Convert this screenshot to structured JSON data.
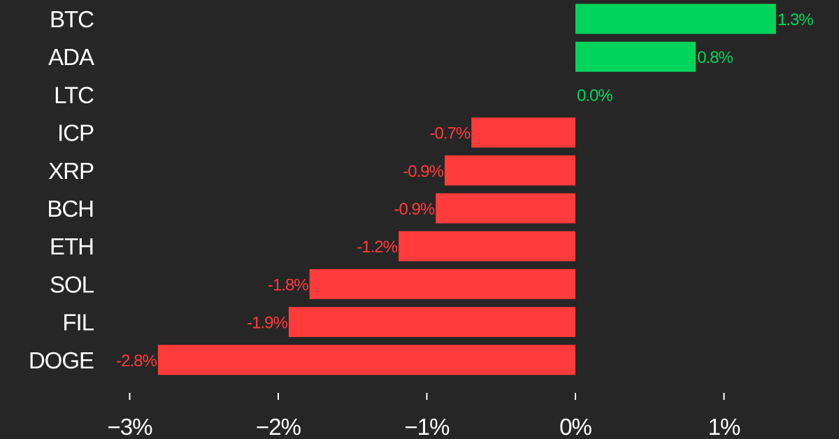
{
  "chart_data": {
    "type": "bar",
    "orientation": "horizontal",
    "categories": [
      "BTC",
      "ADA",
      "LTC",
      "ICP",
      "XRP",
      "BCH",
      "ETH",
      "SOL",
      "FIL",
      "DOGE"
    ],
    "values": [
      1.35,
      0.81,
      0.0,
      -0.7,
      -0.88,
      -0.94,
      -1.19,
      -1.79,
      -1.93,
      -2.81
    ],
    "value_labels": [
      "1.3%",
      "0.8%",
      "0.0%",
      "-0.7%",
      "-0.9%",
      "-0.9%",
      "-1.2%",
      "-1.8%",
      "-1.9%",
      "-2.8%"
    ],
    "xlim": [
      -3,
      1
    ],
    "x_ticks": [
      -3,
      -2,
      -1,
      0,
      1
    ],
    "x_tick_labels": [
      "−3%",
      "−2%",
      "−1%",
      "0%",
      "1%"
    ],
    "title": "",
    "xlabel": "",
    "ylabel": "",
    "grid": false,
    "colors": {
      "positive": "#00d45a",
      "negative": "#ff3b3b",
      "background": "#262626",
      "text": "#ffffff"
    }
  }
}
